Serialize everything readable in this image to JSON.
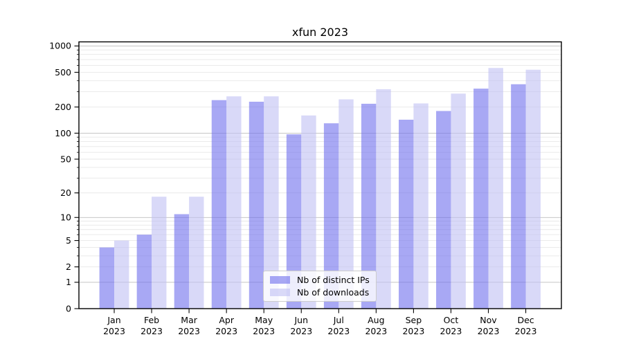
{
  "chart_data": {
    "type": "bar",
    "title": "xfun 2023",
    "categories": [
      "Jan",
      "Feb",
      "Mar",
      "Apr",
      "May",
      "Jun",
      "Jul",
      "Aug",
      "Sep",
      "Oct",
      "Nov",
      "Dec"
    ],
    "x_year": "2023",
    "series": [
      {
        "name": "Nb of distinct IPs",
        "values": [
          4,
          6,
          11,
          240,
          230,
          97,
          130,
          218,
          143,
          180,
          325,
          365
        ]
      },
      {
        "name": "Nb of downloads",
        "values": [
          5,
          18,
          18,
          265,
          265,
          160,
          245,
          320,
          220,
          285,
          560,
          535
        ]
      }
    ],
    "y_ticks": [
      0,
      1,
      2,
      5,
      10,
      20,
      50,
      100,
      200,
      500,
      1000
    ],
    "y_scale": "log1p",
    "ylim": [
      0,
      1115
    ],
    "grid": true,
    "legend_position": "lower center",
    "colors": {
      "ips": "#6e6eed",
      "downloads": "#c0c0f3",
      "fill_opacity": 0.6,
      "grid_major": "#bdbdbd",
      "grid_minor": "#e7e7e7",
      "axis": "#000000"
    }
  }
}
